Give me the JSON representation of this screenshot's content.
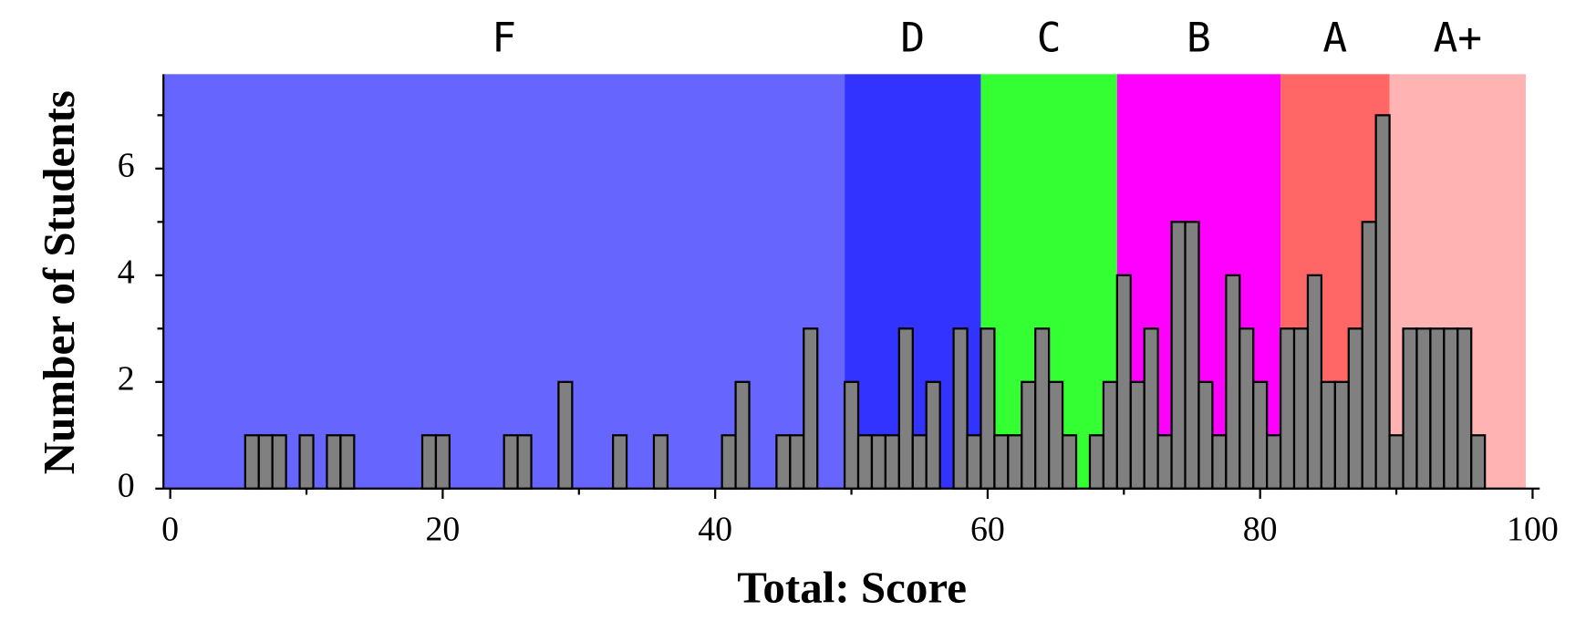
{
  "chart_data": {
    "type": "histogram",
    "x_label": "Total: Score",
    "y_label": "Number of Students",
    "bins": [
      5.5,
      6.5,
      7.5,
      8.5,
      9.5,
      10.5,
      11.5,
      12.5,
      13.5,
      14.5,
      15.5,
      16.5,
      17.5,
      18.5,
      19.5,
      20.5,
      21.5,
      22.5,
      23.5,
      24.5,
      25.5,
      26.5,
      27.5,
      28.5,
      29.5,
      30.5,
      31.5,
      32.5,
      33.5,
      34.5,
      35.5,
      36.5,
      37.5,
      38.5,
      39.5,
      40.5,
      41.5,
      42.5,
      43.5,
      44.5,
      45.5,
      46.5,
      47.5,
      48.5,
      49.5,
      50.5,
      51.5,
      52.5,
      53.5,
      54.5,
      55.5,
      56.5,
      57.5,
      58.5,
      59.5,
      60.5,
      61.5,
      62.5,
      63.5,
      64.5,
      65.5,
      66.5,
      67.5,
      68.5,
      69.5,
      70.5,
      71.5,
      72.5,
      73.5,
      74.5,
      75.5,
      76.5,
      77.5,
      78.5,
      79.5,
      80.5,
      81.5,
      82.5,
      83.5,
      84.5,
      85.5,
      86.5,
      87.5,
      88.5,
      89.5,
      90.5,
      91.5,
      92.5,
      93.5,
      94.5,
      95.5,
      96.5
    ],
    "counts": [
      1,
      1,
      1,
      0,
      1,
      0,
      1,
      1,
      0,
      0,
      0,
      0,
      0,
      1,
      1,
      0,
      0,
      0,
      0,
      1,
      1,
      0,
      0,
      2,
      0,
      0,
      0,
      1,
      0,
      0,
      1,
      0,
      0,
      0,
      0,
      1,
      2,
      0,
      0,
      1,
      1,
      3,
      0,
      0,
      2,
      1,
      1,
      1,
      3,
      1,
      2,
      0,
      3,
      1,
      3,
      1,
      1,
      2,
      3,
      2,
      1,
      0,
      1,
      2,
      4,
      2,
      3,
      1,
      5,
      5,
      2,
      1,
      4,
      3,
      2,
      1,
      3,
      3,
      4,
      2,
      2,
      3,
      5,
      7,
      1,
      3,
      3,
      3,
      3,
      3,
      1
    ],
    "color": "#808080",
    "bands": [
      {
        "label": "F",
        "from": -0.5,
        "to": 49.5,
        "color": "#6666ff"
      },
      {
        "label": "D",
        "from": 49.5,
        "to": 59.5,
        "color": "#3333ff"
      },
      {
        "label": "C",
        "from": 59.5,
        "to": 69.5,
        "color": "#33ff33"
      },
      {
        "label": "B",
        "from": 69.5,
        "to": 81.5,
        "color": "#ff00ff"
      },
      {
        "label": "A",
        "from": 81.5,
        "to": 89.5,
        "color": "#ff6666"
      },
      {
        "label": "A+",
        "from": 89.5,
        "to": 99.5,
        "color": "#ffb3b3"
      }
    ],
    "xlim": [
      -0.5,
      100
    ],
    "ylim": [
      0,
      7.77
    ],
    "xticks": [
      0,
      20,
      40,
      60,
      80,
      100
    ],
    "xminorticks": [
      10,
      30,
      50,
      70,
      90
    ],
    "yticks": [
      0,
      2,
      4,
      6
    ],
    "yminorticks": [
      1,
      3,
      5,
      7
    ]
  }
}
